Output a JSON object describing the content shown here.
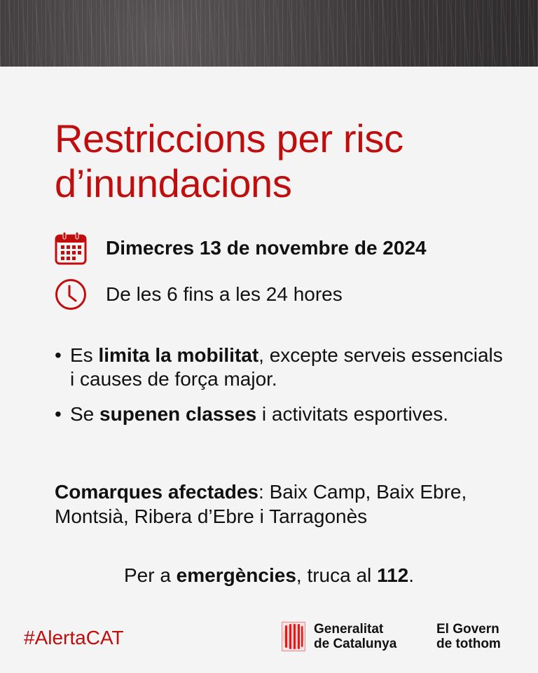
{
  "title": {
    "line1": "Restriccions per risc",
    "line2": "d’inundacions"
  },
  "date": {
    "icon": "calendar-icon",
    "text": "Dimecres 13 de novembre de 2024"
  },
  "time": {
    "icon": "clock-icon",
    "text": "De les 6 fins a les 24 hores"
  },
  "bullets": [
    {
      "pre": "Es ",
      "bold": "limita la mobilitat",
      "post": ", excepte serveis essencials i causes de força major."
    },
    {
      "pre": "Se ",
      "bold": "supenen classes",
      "post": " i activitats esportives."
    }
  ],
  "comarques": {
    "label": "Comarques afectades",
    "text": ": Baix Camp, Baix Ebre, Montsià, Ribera d’Ebre i Tarragonès"
  },
  "emergency": {
    "pre": "Per a ",
    "bold": "emergències",
    "mid": ", truca al ",
    "number": "112",
    "post": "."
  },
  "footer": {
    "hashtag": "#AlertaCAT",
    "logo_line1": "Generalitat",
    "logo_line2": "de Catalunya",
    "slogan_line1": "El Govern",
    "slogan_line2": "de tothom"
  },
  "colors": {
    "accent": "#c00d0d",
    "background": "#f4f4f4",
    "text": "#111111"
  }
}
